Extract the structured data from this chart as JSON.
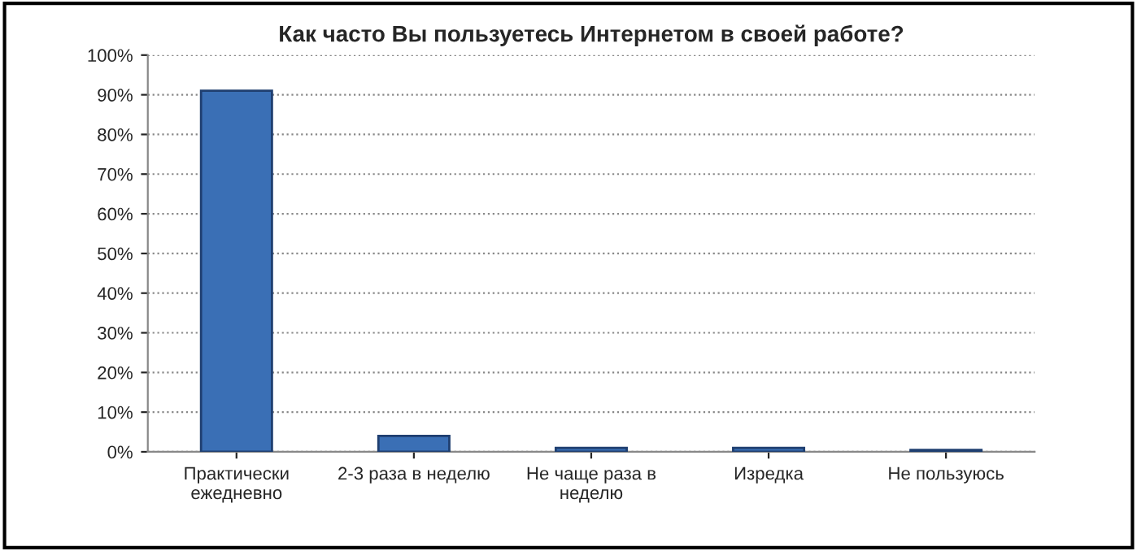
{
  "chart_data": {
    "type": "bar",
    "title": "Как часто Вы пользуетесь Интернетом в своей работе?",
    "categories": [
      "Практически\nежедневно",
      "2-3 раза в неделю",
      "Не чаще раза в\nнеделю",
      "Изредка",
      "Не пользуюсь"
    ],
    "values": [
      91,
      4,
      1,
      1,
      0.5
    ],
    "color": "#3a6fb5",
    "ylim": [
      0,
      100
    ],
    "yticks": [
      {
        "value": 0,
        "label": "0%"
      },
      {
        "value": 10,
        "label": "10%"
      },
      {
        "value": 20,
        "label": "20%"
      },
      {
        "value": 30,
        "label": "30%"
      },
      {
        "value": 40,
        "label": "40%"
      },
      {
        "value": 50,
        "label": "50%"
      },
      {
        "value": 60,
        "label": "60%"
      },
      {
        "value": 70,
        "label": "70%"
      },
      {
        "value": 80,
        "label": "80%"
      },
      {
        "value": 90,
        "label": "90%"
      },
      {
        "value": 100,
        "label": "100%"
      }
    ],
    "grid": "y",
    "legend": false
  }
}
